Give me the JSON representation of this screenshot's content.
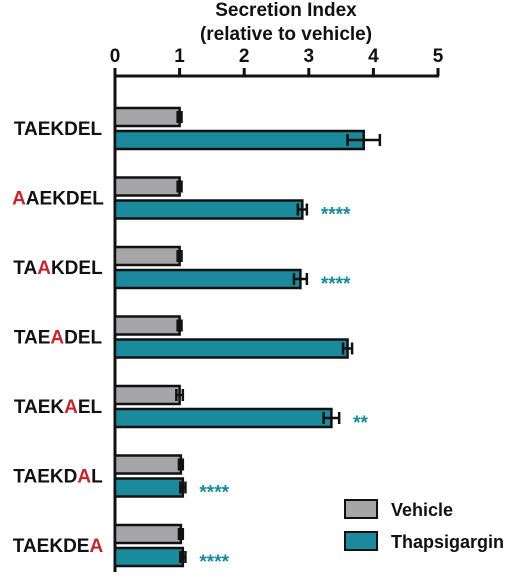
{
  "chart_data": {
    "type": "bar",
    "orientation": "horizontal",
    "title_lines": [
      "Secretion  Index",
      "(relative to vehicle)"
    ],
    "xlim": [
      0,
      5
    ],
    "x_ticks": [
      0,
      1,
      2,
      3,
      4,
      5
    ],
    "x_axis_position": "top",
    "grid": false,
    "categories": [
      {
        "parts": [
          {
            "text": "TAEKDEL",
            "mutated": false
          }
        ]
      },
      {
        "parts": [
          {
            "text": "A",
            "mutated": true
          },
          {
            "text": "AEKDEL",
            "mutated": false
          }
        ]
      },
      {
        "parts": [
          {
            "text": "TA",
            "mutated": false
          },
          {
            "text": "A",
            "mutated": true
          },
          {
            "text": "KDEL",
            "mutated": false
          }
        ]
      },
      {
        "parts": [
          {
            "text": "TAE",
            "mutated": false
          },
          {
            "text": "A",
            "mutated": true
          },
          {
            "text": "DEL",
            "mutated": false
          }
        ]
      },
      {
        "parts": [
          {
            "text": "TAEK",
            "mutated": false
          },
          {
            "text": "A",
            "mutated": true
          },
          {
            "text": "EL",
            "mutated": false
          }
        ]
      },
      {
        "parts": [
          {
            "text": "TAEKD",
            "mutated": false
          },
          {
            "text": "A",
            "mutated": true
          },
          {
            "text": "L",
            "mutated": false
          }
        ]
      },
      {
        "parts": [
          {
            "text": "TAEKDE",
            "mutated": false
          },
          {
            "text": "A",
            "mutated": true
          }
        ]
      }
    ],
    "series": [
      {
        "name": "Vehicle",
        "color": "#a6a6a8",
        "values": [
          1.0,
          1.0,
          1.0,
          1.0,
          1.0,
          1.02,
          1.02
        ],
        "errors": [
          0.03,
          0.03,
          0.03,
          0.03,
          0.05,
          0.03,
          0.03
        ]
      },
      {
        "name": "Thapsigargin",
        "color": "#1a8a9c",
        "values": [
          3.85,
          2.9,
          2.87,
          3.6,
          3.35,
          1.05,
          1.05
        ],
        "errors": [
          0.25,
          0.07,
          0.1,
          0.07,
          0.12,
          0.04,
          0.04
        ],
        "significance": [
          "",
          "****",
          "****",
          "",
          "**",
          "****",
          "****"
        ]
      }
    ],
    "legend_position": "bottom-right",
    "colors": {
      "mutation": "#c0282d",
      "significance": "#1a8a9c",
      "ink": "#111111"
    }
  }
}
